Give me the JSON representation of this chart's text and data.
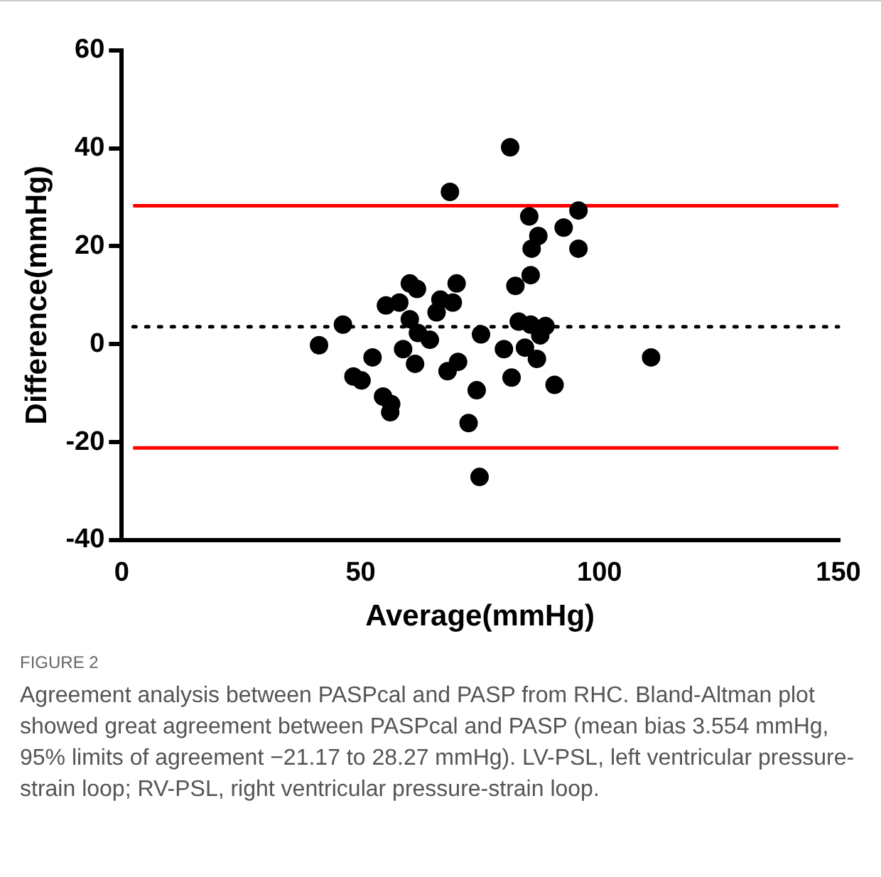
{
  "chart_data": {
    "type": "scatter",
    "xlabel": "Average(mmHg)",
    "ylabel": "Difference(mmHg)",
    "x": [
      68.7,
      60.3,
      61.8,
      70.1,
      55.3,
      58.1,
      66.7,
      69.3,
      65.9,
      60.3,
      46.3,
      62.0,
      64.5,
      41.3,
      58.9,
      52.5,
      61.4,
      68.2,
      70.4,
      48.5,
      50.2,
      74.3,
      54.7,
      56.4,
      56.2,
      72.6,
      74.9,
      81.3,
      85.3,
      95.6,
      92.5,
      87.2,
      85.8,
      95.6,
      85.6,
      82.4,
      83.1,
      85.6,
      88.7,
      75.2,
      87.6,
      80.0,
      84.4,
      86.9,
      110.8,
      81.6,
      90.6
    ],
    "values": [
      31.1,
      12.4,
      11.3,
      12.4,
      7.9,
      8.5,
      9.1,
      8.5,
      6.5,
      5.1,
      4.0,
      2.3,
      0.9,
      -0.2,
      -1.0,
      -2.7,
      -4.0,
      -5.5,
      -3.6,
      -6.6,
      -7.4,
      -9.4,
      -10.7,
      -12.2,
      -13.9,
      -16.1,
      -27.1,
      40.2,
      26.1,
      27.3,
      23.8,
      22.1,
      19.5,
      19.5,
      14.1,
      11.9,
      4.6,
      4.0,
      3.7,
      2.0,
      1.8,
      -1.0,
      -0.7,
      -3.0,
      -2.7,
      -6.8,
      -8.3
    ],
    "color": "#000000",
    "marker": "circle",
    "xlim": [
      0,
      150
    ],
    "xticks": [
      0,
      50,
      100,
      150
    ],
    "ylim": [
      -40,
      60
    ],
    "yticks": [
      -40,
      -20,
      0,
      20,
      40,
      60
    ],
    "grid": false,
    "ref_lines": [
      {
        "axis": "y",
        "value": 28.27,
        "color": "#ff0000",
        "line_style": "solid"
      },
      {
        "axis": "y",
        "value": -21.17,
        "color": "#ff0000",
        "line_style": "solid"
      },
      {
        "axis": "y",
        "value": 3.554,
        "color": "#000000",
        "line_style": "dotted"
      }
    ],
    "annotations": [
      "FIGURE 2",
      "Agreement analysis between PASPcal and PASP from RHC. Bland-Altman plot showed great agreement between PASPcal and PASP (mean bias 3.554 mmHg, 95% limits of agreement −21.17 to 28.27 mmHg). LV-PSL, left ventricular pressure-strain loop; RV-PSL, right ventricular pressure-strain loop."
    ]
  }
}
